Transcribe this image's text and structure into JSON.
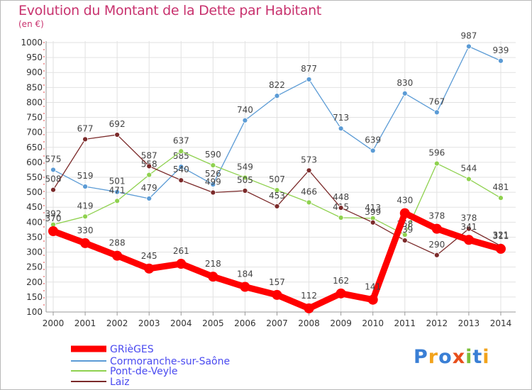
{
  "title": "Evolution du Montant de la Dette par Habitant",
  "unit_label": "(en €)",
  "logo": {
    "text": "Proxiti",
    "colors": [
      "#3a7fd5",
      "#f2a31c",
      "#3a7fd5",
      "#e84e1b",
      "#7bbf3a",
      "#3a7fd5",
      "#f2a31c"
    ]
  },
  "chart_data": {
    "type": "line",
    "title": "Evolution du Montant de la Dette par Habitant",
    "ylabel": "(en €)",
    "xlabel": "",
    "x": [
      "2000",
      "2001",
      "2002",
      "2003",
      "2004",
      "2005",
      "2006",
      "2007",
      "2008",
      "2009",
      "2010",
      "2011",
      "2012",
      "2013",
      "2014"
    ],
    "ylim": [
      100,
      1000
    ],
    "yticks": [
      100,
      150,
      200,
      250,
      300,
      350,
      400,
      450,
      500,
      550,
      600,
      650,
      700,
      750,
      800,
      850,
      900,
      950,
      1000
    ],
    "grid": true,
    "legend_position": "bottom-left",
    "series": [
      {
        "name": "GRièGES",
        "color": "#ff0000",
        "values": [
          370,
          330,
          288,
          245,
          261,
          218,
          184,
          157,
          112,
          162,
          141,
          430,
          378,
          341,
          311
        ],
        "labels": [
          "370",
          "330",
          "288",
          "245",
          "261",
          "218",
          "184",
          "157",
          "112",
          "162",
          "141",
          "430",
          "378",
          "341",
          "311"
        ]
      },
      {
        "name": "Cormoranche-sur-Saône",
        "color": "#5b9bd5",
        "values": [
          575,
          519,
          501,
          479,
          585,
          526,
          740,
          822,
          877,
          713,
          639,
          830,
          767,
          987,
          939
        ],
        "labels": [
          "575",
          "519",
          "501",
          "479",
          "585",
          "526",
          "740",
          "822",
          "877",
          "713",
          "639",
          "830",
          "767",
          "987",
          "939"
        ]
      },
      {
        "name": "Pont-de-Veyle",
        "color": "#8fd14f",
        "values": [
          392,
          419,
          471,
          558,
          637,
          590,
          549,
          507,
          466,
          415,
          413,
          358,
          596,
          544,
          481
        ],
        "labels": [
          "392",
          "419",
          "471",
          "558",
          "637",
          "590",
          "549",
          "507",
          "466",
          "415",
          "413",
          "358",
          "596",
          "544",
          "481"
        ]
      },
      {
        "name": "Laiz",
        "color": "#7b2a2a",
        "values": [
          508,
          677,
          692,
          587,
          540,
          499,
          505,
          453,
          573,
          448,
          399,
          339,
          290,
          378,
          321
        ],
        "labels": [
          "508",
          "677",
          "692",
          "587",
          "540",
          "499",
          "505",
          "453",
          "573",
          "448",
          "399",
          "339",
          "290",
          "378",
          "321"
        ]
      }
    ]
  }
}
